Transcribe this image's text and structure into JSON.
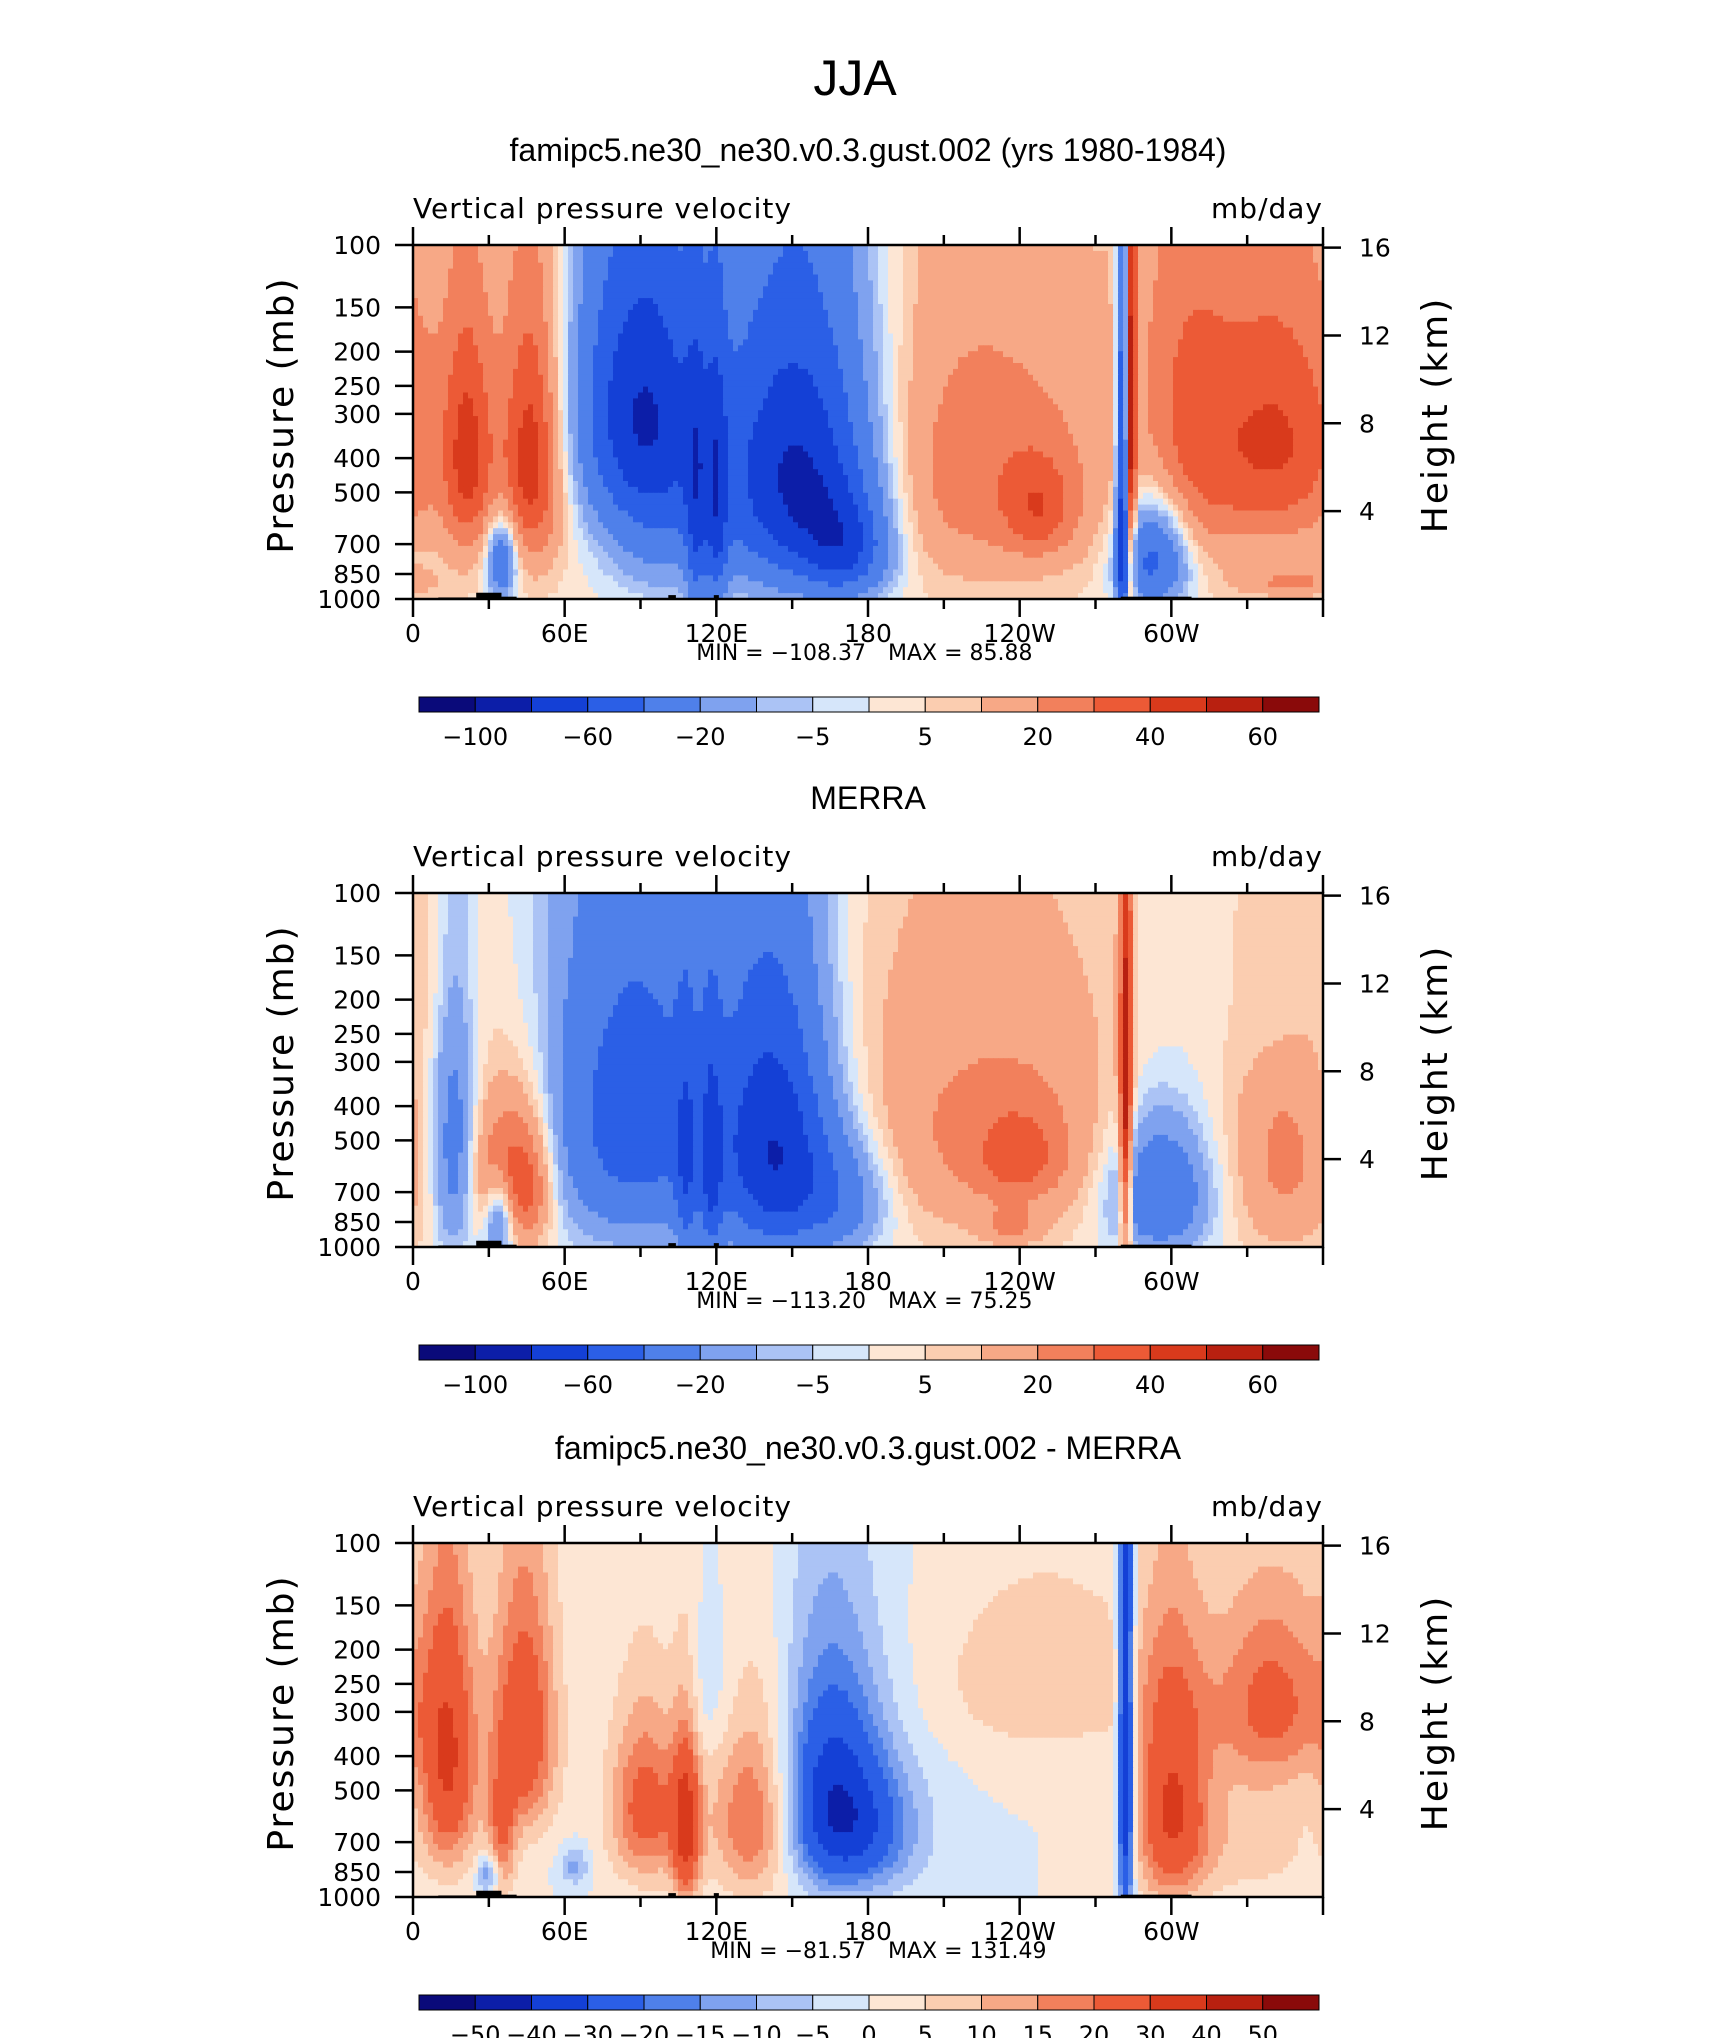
{
  "figure_title": "JJA",
  "colors": {
    "model_obs_scale": [
      "#0a0a7a",
      "#0c1ea8",
      "#1440d6",
      "#2b5fe6",
      "#4f80ea",
      "#7fa2ef",
      "#abc3f5",
      "#d6e6fa",
      "#fde6d4",
      "#fbcdb0",
      "#f7a886",
      "#f2805c",
      "#ec5a36",
      "#d93a1c",
      "#b82010",
      "#8a0a0a"
    ],
    "diff_scale": [
      "#0a0a7a",
      "#0c1ea8",
      "#1440d6",
      "#2b5fe6",
      "#4f80ea",
      "#7fa2ef",
      "#abc3f5",
      "#d6e6fa",
      "#fde6d4",
      "#fbcdb0",
      "#f7a886",
      "#f2805c",
      "#ec5a36",
      "#d93a1c",
      "#b82010",
      "#8a0a0a"
    ]
  },
  "chart_data": [
    {
      "type": "heatmap",
      "title": "famipc5.ne30_ne30.v0.3.gust.002 (yrs 1980-1984)",
      "variable": "Vertical pressure velocity",
      "units": "mb/day",
      "ylabel": "Pressure (mb)",
      "y2label": "Height (km)",
      "x_ticks": [
        "0",
        "60E",
        "120E",
        "180",
        "120W",
        "60W"
      ],
      "x_values": [
        0,
        60,
        120,
        180,
        240,
        300
      ],
      "xlim": [
        0,
        360
      ],
      "y_ticks": [
        "100",
        "150",
        "200",
        "250",
        "300",
        "400",
        "500",
        "700",
        "850",
        "1000"
      ],
      "y_values": [
        100,
        150,
        200,
        250,
        300,
        400,
        500,
        700,
        850,
        1000
      ],
      "ylim": [
        1000,
        100
      ],
      "y2_ticks": [
        "16",
        "12",
        "8",
        "4"
      ],
      "y2_values": [
        16,
        12,
        8,
        4
      ],
      "min_label": "MIN = −108.37",
      "max_label": "MAX = 85.88",
      "min": -108.37,
      "max": 85.88,
      "colorbar_labels": [
        "−100",
        "−60",
        "−20",
        "−5",
        "5",
        "20",
        "40",
        "60"
      ],
      "colorbar_levels": [
        -100,
        -80,
        -60,
        -40,
        -20,
        -10,
        -5,
        0,
        5,
        10,
        20,
        30,
        40,
        50,
        60
      ],
      "field": {
        "anoms": [
          {
            "x": 22,
            "p": 400,
            "sx": 7,
            "sp": 230,
            "v": 35
          },
          {
            "x": 47,
            "p": 400,
            "sx": 9,
            "sp": 250,
            "v": 45
          },
          {
            "x": 35,
            "p": 780,
            "sx": 4,
            "sp": 140,
            "v": -45
          },
          {
            "x": 90,
            "p": 280,
            "sx": 18,
            "sp": 200,
            "v": -75
          },
          {
            "x": 97,
            "p": 620,
            "sx": 16,
            "sp": 240,
            "v": -25
          },
          {
            "x": 112,
            "p": 620,
            "sx": 3,
            "sp": 350,
            "v": -35
          },
          {
            "x": 120,
            "p": 600,
            "sx": 3,
            "sp": 350,
            "v": -40
          },
          {
            "x": 152,
            "p": 450,
            "sx": 22,
            "sp": 300,
            "v": -90
          },
          {
            "x": 172,
            "p": 730,
            "sx": 12,
            "sp": 170,
            "v": -45
          },
          {
            "x": 222,
            "p": 430,
            "sx": 40,
            "sp": 290,
            "v": 24
          },
          {
            "x": 248,
            "p": 560,
            "sx": 10,
            "sp": 130,
            "v": 20
          },
          {
            "x": 281,
            "p": 500,
            "sx": 1.8,
            "sp": 480,
            "v": -85
          },
          {
            "x": 283.5,
            "p": 420,
            "sx": 1.6,
            "sp": 480,
            "v": 65
          },
          {
            "x": 293,
            "p": 760,
            "sx": 10,
            "sp": 190,
            "v": -55
          },
          {
            "x": 305,
            "p": 350,
            "sx": 14,
            "sp": 320,
            "v": 22
          },
          {
            "x": 342,
            "p": 360,
            "sx": 22,
            "sp": 230,
            "v": 38
          },
          {
            "x": 348,
            "p": 900,
            "sx": 14,
            "sp": 60,
            "v": 18
          }
        ],
        "base": 3
      }
    },
    {
      "type": "heatmap",
      "title": "MERRA",
      "variable": "Vertical pressure velocity",
      "units": "mb/day",
      "ylabel": "Pressure (mb)",
      "y2label": "Height (km)",
      "x_ticks": [
        "0",
        "60E",
        "120E",
        "180",
        "120W",
        "60W"
      ],
      "x_values": [
        0,
        60,
        120,
        180,
        240,
        300
      ],
      "xlim": [
        0,
        360
      ],
      "y_ticks": [
        "100",
        "150",
        "200",
        "250",
        "300",
        "400",
        "500",
        "700",
        "850",
        "1000"
      ],
      "y_values": [
        100,
        150,
        200,
        250,
        300,
        400,
        500,
        700,
        850,
        1000
      ],
      "ylim": [
        1000,
        100
      ],
      "y2_ticks": [
        "16",
        "12",
        "8",
        "4"
      ],
      "y2_values": [
        16,
        12,
        8,
        4
      ],
      "min_label": "MIN = −113.20",
      "max_label": "MAX = 75.25",
      "min": -113.2,
      "max": 75.25,
      "colorbar_labels": [
        "−100",
        "−60",
        "−20",
        "−5",
        "5",
        "20",
        "40",
        "60"
      ],
      "colorbar_levels": [
        -100,
        -80,
        -60,
        -40,
        -20,
        -10,
        -5,
        0,
        5,
        10,
        20,
        30,
        40,
        50,
        60
      ],
      "field": {
        "anoms": [
          {
            "x": 8,
            "p": 160,
            "sx": 12,
            "sp": 90,
            "v": 6
          },
          {
            "x": 16,
            "p": 520,
            "sx": 6,
            "sp": 330,
            "v": -30
          },
          {
            "x": 32,
            "p": 620,
            "sx": 7,
            "sp": 200,
            "v": 25
          },
          {
            "x": 45,
            "p": 650,
            "sx": 8,
            "sp": 220,
            "v": 38
          },
          {
            "x": 34,
            "p": 820,
            "sx": 4,
            "sp": 160,
            "v": -40
          },
          {
            "x": 88,
            "p": 420,
            "sx": 24,
            "sp": 330,
            "v": -55
          },
          {
            "x": 108,
            "p": 650,
            "sx": 3,
            "sp": 320,
            "v": -30
          },
          {
            "x": 118,
            "p": 640,
            "sx": 3,
            "sp": 320,
            "v": -35
          },
          {
            "x": 143,
            "p": 530,
            "sx": 16,
            "sp": 330,
            "v": -80
          },
          {
            "x": 170,
            "p": 720,
            "sx": 14,
            "sp": 200,
            "v": -30
          },
          {
            "x": 225,
            "p": 460,
            "sx": 45,
            "sp": 300,
            "v": 20
          },
          {
            "x": 240,
            "p": 560,
            "sx": 12,
            "sp": 120,
            "v": 18
          },
          {
            "x": 237,
            "p": 880,
            "sx": 8,
            "sp": 70,
            "v": 15
          },
          {
            "x": 282,
            "p": 450,
            "sx": 1.8,
            "sp": 450,
            "v": 55
          },
          {
            "x": 295,
            "p": 700,
            "sx": 14,
            "sp": 220,
            "v": -45
          },
          {
            "x": 345,
            "p": 560,
            "sx": 15,
            "sp": 300,
            "v": 20
          },
          {
            "x": 345,
            "p": 240,
            "sx": 14,
            "sp": 80,
            "v": -5
          }
        ],
        "base": 2
      }
    },
    {
      "type": "heatmap",
      "title": "famipc5.ne30_ne30.v0.3.gust.002 - MERRA",
      "variable": "Vertical pressure velocity",
      "units": "mb/day",
      "ylabel": "Pressure (mb)",
      "y2label": "Height (km)",
      "x_ticks": [
        "0",
        "60E",
        "120E",
        "180",
        "120W",
        "60W"
      ],
      "x_values": [
        0,
        60,
        120,
        180,
        240,
        300
      ],
      "xlim": [
        0,
        360
      ],
      "y_ticks": [
        "100",
        "150",
        "200",
        "250",
        "300",
        "400",
        "500",
        "700",
        "850",
        "1000"
      ],
      "y_values": [
        100,
        150,
        200,
        250,
        300,
        400,
        500,
        700,
        850,
        1000
      ],
      "ylim": [
        1000,
        100
      ],
      "y2_ticks": [
        "16",
        "12",
        "8",
        "4"
      ],
      "y2_values": [
        16,
        12,
        8,
        4
      ],
      "min_label": "MIN = −81.57",
      "max_label": "MAX = 131.49",
      "min": -81.57,
      "max": 131.49,
      "colorbar_labels": [
        "−50",
        "−40",
        "−30",
        "−20",
        "−15",
        "−10",
        "−5",
        "0",
        "5",
        "10",
        "15",
        "20",
        "30",
        "40",
        "50"
      ],
      "colorbar_levels": [
        -50,
        -40,
        -30,
        -20,
        -15,
        -10,
        -5,
        0,
        5,
        10,
        15,
        20,
        30,
        40,
        50
      ],
      "field": {
        "anoms": [
          {
            "x": 14,
            "p": 420,
            "sx": 8,
            "sp": 260,
            "v": 30
          },
          {
            "x": 44,
            "p": 340,
            "sx": 9,
            "sp": 200,
            "v": 28
          },
          {
            "x": 35,
            "p": 700,
            "sx": 4,
            "sp": 200,
            "v": 18
          },
          {
            "x": 30,
            "p": 860,
            "sx": 3,
            "sp": 80,
            "v": -18
          },
          {
            "x": 64,
            "p": 820,
            "sx": 4,
            "sp": 70,
            "v": -12
          },
          {
            "x": 92,
            "p": 560,
            "sx": 10,
            "sp": 220,
            "v": 24
          },
          {
            "x": 108,
            "p": 640,
            "sx": 4,
            "sp": 260,
            "v": 30
          },
          {
            "x": 135,
            "p": 600,
            "sx": 12,
            "sp": 250,
            "v": 22
          },
          {
            "x": 116,
            "p": 260,
            "sx": 8,
            "sp": 100,
            "v": -6
          },
          {
            "x": 165,
            "p": 520,
            "sx": 14,
            "sp": 260,
            "v": -32
          },
          {
            "x": 180,
            "p": 650,
            "sx": 16,
            "sp": 200,
            "v": -18
          },
          {
            "x": 250,
            "p": 240,
            "sx": 30,
            "sp": 100,
            "v": 10
          },
          {
            "x": 282,
            "p": 420,
            "sx": 2.2,
            "sp": 500,
            "v": -45
          },
          {
            "x": 300,
            "p": 560,
            "sx": 10,
            "sp": 300,
            "v": 30
          },
          {
            "x": 340,
            "p": 280,
            "sx": 18,
            "sp": 130,
            "v": 22
          },
          {
            "x": 330,
            "p": 700,
            "sx": 20,
            "sp": 200,
            "v": 8
          }
        ],
        "base": 0
      }
    }
  ]
}
